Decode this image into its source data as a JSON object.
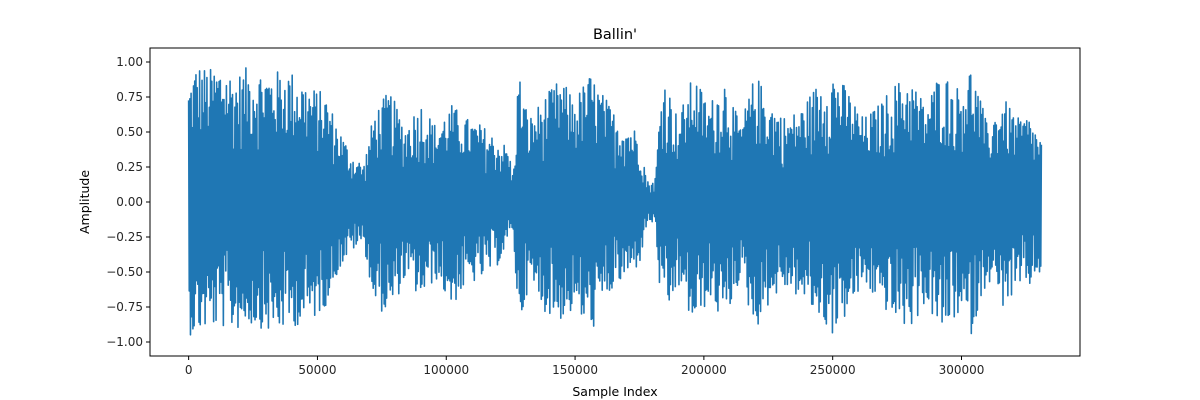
{
  "chart_data": {
    "type": "line",
    "title": "Ballin'",
    "xlabel": "Sample Index",
    "ylabel": "Amplitude",
    "xlim": [
      -15000,
      346000
    ],
    "ylim": [
      -1.1,
      1.1
    ],
    "x_ticks": [
      0,
      50000,
      100000,
      150000,
      200000,
      250000,
      300000
    ],
    "x_tick_labels": [
      "0",
      "50000",
      "100000",
      "150000",
      "200000",
      "250000",
      "300000"
    ],
    "y_ticks": [
      1.0,
      0.75,
      0.5,
      0.25,
      0.0,
      -0.25,
      -0.5,
      -0.75,
      -1.0
    ],
    "y_tick_labels": [
      "1.00",
      "0.75",
      "0.50",
      "0.25",
      "0.00",
      "−0.25",
      "−0.50",
      "−0.75",
      "−1.00"
    ],
    "grid": false,
    "legend": false,
    "series": [
      {
        "color": "#1f77b4",
        "x_start": 0,
        "x_end": 331000,
        "envelope": {
          "x": [
            0,
            3000,
            8000,
            13000,
            18000,
            23000,
            28000,
            33000,
            38000,
            43000,
            48000,
            53000,
            58000,
            63000,
            68000,
            72000,
            78000,
            84000,
            90000,
            96000,
            102000,
            108000,
            114000,
            120000,
            124000,
            126000,
            128000,
            132000,
            138000,
            144000,
            150000,
            156000,
            160000,
            165000,
            170000,
            175000,
            178000,
            181000,
            184000,
            190000,
            196000,
            202000,
            208000,
            214000,
            220000,
            226000,
            232000,
            238000,
            244000,
            250000,
            256000,
            262000,
            268000,
            274000,
            280000,
            286000,
            292000,
            298000,
            304000,
            310000,
            316000,
            322000,
            326000,
            331000
          ],
          "upper": [
            0.85,
            1.0,
            0.95,
            1.0,
            0.9,
            0.97,
            0.95,
            0.93,
            0.96,
            0.9,
            0.82,
            0.78,
            0.55,
            0.35,
            0.27,
            0.65,
            0.8,
            0.55,
            0.72,
            0.55,
            0.7,
            0.6,
            0.55,
            0.45,
            0.4,
            0.18,
            0.95,
            0.6,
            0.75,
            0.88,
            0.75,
            0.92,
            0.8,
            0.65,
            0.58,
            0.5,
            0.15,
            0.15,
            0.95,
            0.6,
            0.92,
            0.7,
            0.9,
            0.55,
            0.92,
            0.72,
            0.6,
            0.68,
            0.85,
            0.95,
            0.8,
            0.6,
            0.7,
            0.85,
            0.9,
            0.7,
            0.95,
            0.82,
            0.98,
            0.55,
            0.75,
            0.6,
            0.62,
            0.45
          ],
          "lower": [
            -0.95,
            -0.95,
            -0.9,
            -0.9,
            -0.92,
            -0.88,
            -0.9,
            -0.95,
            -0.9,
            -0.88,
            -0.85,
            -0.75,
            -0.5,
            -0.35,
            -0.3,
            -0.75,
            -0.82,
            -0.55,
            -0.7,
            -0.55,
            -0.75,
            -0.6,
            -0.55,
            -0.45,
            -0.3,
            -0.2,
            -0.92,
            -0.6,
            -0.78,
            -0.85,
            -0.78,
            -0.95,
            -0.78,
            -0.62,
            -0.55,
            -0.45,
            -0.15,
            -0.15,
            -0.92,
            -0.6,
            -0.9,
            -0.7,
            -0.88,
            -0.55,
            -0.92,
            -0.7,
            -0.62,
            -0.7,
            -0.82,
            -0.95,
            -0.8,
            -0.6,
            -0.72,
            -0.85,
            -0.92,
            -0.72,
            -0.95,
            -0.82,
            -0.95,
            -0.55,
            -0.75,
            -0.65,
            -0.62,
            -0.5
          ]
        }
      }
    ]
  }
}
